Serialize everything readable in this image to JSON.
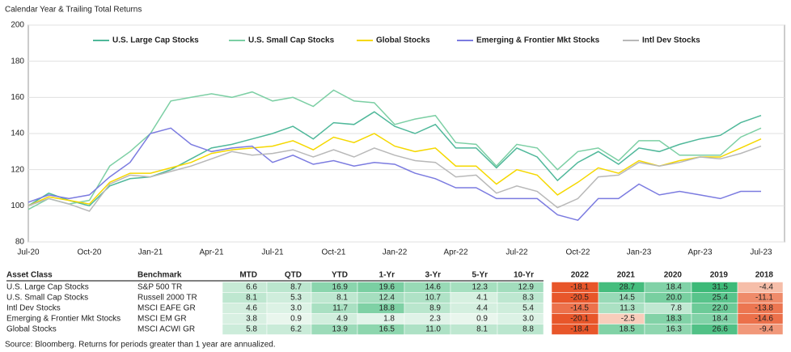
{
  "chart_data": {
    "type": "line",
    "title": "Calendar Year & Trailing Total Returns",
    "categories": [
      "Jul-20",
      null,
      null,
      "Oct-20",
      null,
      null,
      "Jan-21",
      null,
      null,
      "Apr-21",
      null,
      null,
      "Jul-21",
      null,
      null,
      "Oct-21",
      null,
      null,
      "Jan-22",
      null,
      null,
      "Apr-22",
      null,
      null,
      "Jul-22",
      null,
      null,
      "Oct-22",
      null,
      null,
      "Jan-23",
      null,
      null,
      "Apr-23",
      null,
      null,
      "Jul-23"
    ],
    "series": [
      {
        "name": "U.S. Large Cap Stocks",
        "color": "#4fb89a",
        "values": [
          100,
          107,
          103,
          100,
          111,
          115,
          116,
          120,
          126,
          132,
          134,
          137,
          140,
          144,
          137,
          146,
          145,
          152,
          144,
          140,
          145,
          132,
          132,
          121,
          132,
          127,
          114,
          124,
          130,
          123,
          132,
          130,
          134,
          137,
          139,
          146,
          150
        ]
      },
      {
        "name": "U.S. Small Cap Stocks",
        "color": "#7ccfa4",
        "values": [
          98,
          104,
          101,
          103,
          122,
          130,
          140,
          158,
          160,
          162,
          160,
          163,
          158,
          160,
          155,
          164,
          158,
          157,
          145,
          148,
          150,
          135,
          134,
          122,
          134,
          132,
          120,
          130,
          132,
          125,
          136,
          136,
          128,
          128,
          128,
          138,
          143
        ]
      },
      {
        "name": "Global Stocks",
        "color": "#f5d800",
        "values": [
          100,
          105,
          103,
          101,
          113,
          118,
          118,
          121,
          124,
          129,
          131,
          132,
          133,
          136,
          131,
          138,
          135,
          140,
          133,
          130,
          132,
          122,
          122,
          112,
          120,
          117,
          106,
          113,
          121,
          118,
          125,
          122,
          125,
          127,
          127,
          132,
          137
        ]
      },
      {
        "name": "Emerging & Frontier Mkt Stocks",
        "color": "#7b7be0",
        "values": [
          102,
          106,
          104,
          106,
          116,
          124,
          140,
          143,
          134,
          130,
          132,
          133,
          124,
          128,
          123,
          125,
          122,
          124,
          123,
          118,
          115,
          110,
          110,
          104,
          104,
          104,
          95,
          92,
          104,
          104,
          112,
          106,
          108,
          106,
          104,
          108,
          108
        ]
      },
      {
        "name": "Intl Dev Stocks",
        "color": "#b8b8b8",
        "values": [
          100,
          104,
          101,
          97,
          112,
          117,
          116,
          119,
          122,
          126,
          130,
          128,
          129,
          131,
          127,
          131,
          127,
          132,
          128,
          125,
          124,
          116,
          117,
          107,
          111,
          108,
          99,
          104,
          116,
          117,
          124,
          122,
          124,
          127,
          126,
          129,
          133
        ]
      }
    ],
    "ylim": [
      80,
      200
    ],
    "yticks": [
      80,
      100,
      120,
      140,
      160,
      180,
      200
    ],
    "grid": true
  },
  "table": {
    "columns": [
      "Asset Class",
      "Benchmark",
      "MTD",
      "QTD",
      "YTD",
      "1-Yr",
      "3-Yr",
      "5-Yr",
      "10-Yr",
      "2022",
      "2021",
      "2020",
      "2019",
      "2018"
    ],
    "rows": [
      [
        "U.S. Large Cap Stocks",
        "S&P 500 TR",
        "6.6",
        "8.7",
        "16.9",
        "19.6",
        "14.6",
        "12.3",
        "12.9",
        "-18.1",
        "28.7",
        "18.4",
        "31.5",
        "-4.4"
      ],
      [
        "U.S. Small Cap Stocks",
        "Russell 2000 TR",
        "8.1",
        "5.3",
        "8.1",
        "12.4",
        "10.7",
        "4.1",
        "8.3",
        "-20.5",
        "14.5",
        "20.0",
        "25.4",
        "-11.1"
      ],
      [
        "Intl Dev Stocks",
        "MSCI EAFE GR",
        "4.6",
        "3.0",
        "11.7",
        "18.8",
        "8.9",
        "4.4",
        "5.4",
        "-14.5",
        "11.3",
        "7.8",
        "22.0",
        "-13.8"
      ],
      [
        "Emerging & Frontier Mkt Stocks",
        "MSCI EM GR",
        "3.8",
        "0.9",
        "4.9",
        "1.8",
        "2.3",
        "0.9",
        "3.0",
        "-20.1",
        "-2.5",
        "18.3",
        "18.4",
        "-14.6"
      ],
      [
        "Global Stocks",
        "MSCI ACWI GR",
        "5.8",
        "6.2",
        "13.9",
        "16.5",
        "11.0",
        "8.1",
        "8.8",
        "-18.4",
        "18.5",
        "16.3",
        "26.6",
        "-9.4"
      ]
    ]
  },
  "source": "Source: Bloomberg. Returns for periods greater than 1 year are annualized."
}
